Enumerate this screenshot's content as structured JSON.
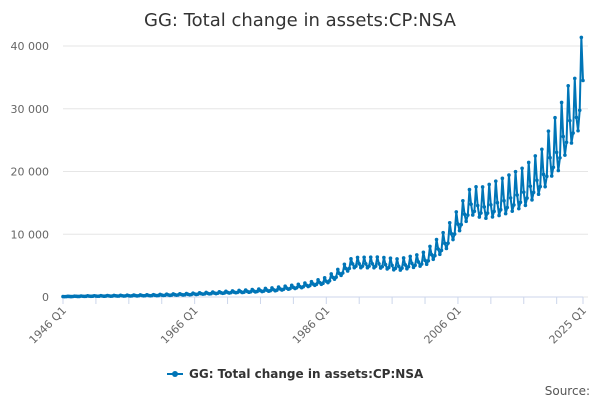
{
  "chart_data": {
    "type": "line",
    "title": "GG: Total change in assets:CP:NSA",
    "xlabel": "",
    "ylabel": "",
    "x_range": [
      1946.0,
      2025.0
    ],
    "ylim": [
      0,
      40000
    ],
    "y_ticks": [
      0,
      10000,
      20000,
      30000,
      40000
    ],
    "y_tick_labels": [
      "0",
      "10 000",
      "20 000",
      "30 000",
      "40 000"
    ],
    "x_ticks": [
      1946.0,
      1966.0,
      1986.0,
      2006.0,
      2025.0
    ],
    "x_tick_labels": [
      "1946 Q1",
      "1966 Q1",
      "1986 Q1",
      "2006 Q1",
      "2025 Q1"
    ],
    "grid": "horizontal",
    "legend_position": "bottom",
    "credit": "Source:",
    "series": [
      {
        "name": "GG: Total change in assets:CP:NSA",
        "color": "#0075b7",
        "marker": "circle",
        "anchors": [
          [
            1946.0,
            60
          ],
          [
            1950.0,
            130
          ],
          [
            1955.0,
            180
          ],
          [
            1960.0,
            250
          ],
          [
            1965.0,
            400
          ],
          [
            1970.0,
            650
          ],
          [
            1975.0,
            900
          ],
          [
            1978.0,
            1100
          ],
          [
            1982.0,
            1600
          ],
          [
            1986.0,
            2400
          ],
          [
            1988.0,
            3600
          ],
          [
            1990.0,
            5100
          ],
          [
            1994.0,
            5100
          ],
          [
            1997.0,
            4700
          ],
          [
            2001.0,
            5600
          ],
          [
            2004.0,
            8200
          ],
          [
            2006.0,
            11200
          ],
          [
            2008.0,
            14300
          ],
          [
            2010.0,
            13800
          ],
          [
            2013.0,
            14700
          ],
          [
            2016.0,
            16000
          ],
          [
            2019.0,
            18800
          ],
          [
            2020.0,
            21300
          ],
          [
            2021.0,
            22000
          ],
          [
            2022.0,
            24500
          ],
          [
            2023.0,
            27000
          ],
          [
            2024.0,
            27500
          ],
          [
            2025.0,
            34500
          ]
        ],
        "seasonal_amplitude": [
          [
            1946.0,
            30
          ],
          [
            1970.0,
            200
          ],
          [
            1984.0,
            500
          ],
          [
            1990.0,
            1200
          ],
          [
            2000.0,
            1400
          ],
          [
            2006.0,
            2800
          ],
          [
            2012.0,
            4200
          ],
          [
            2019.0,
            5000
          ],
          [
            2021.0,
            7000
          ],
          [
            2024.0,
            7500
          ],
          [
            2025.0,
            9000
          ]
        ],
        "endpoint": [
          2025.0,
          34500
        ]
      }
    ]
  }
}
